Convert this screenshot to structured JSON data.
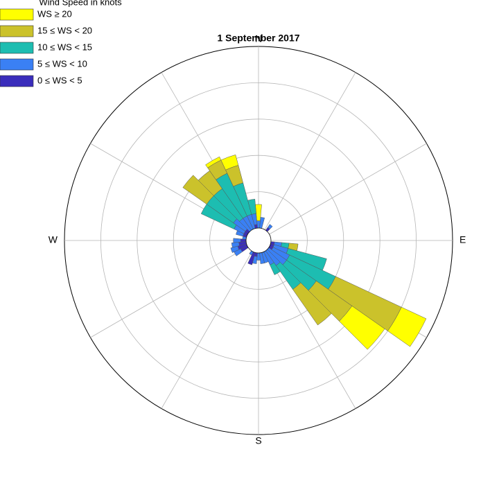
{
  "chart_data": {
    "type": "windrose",
    "title": "1 September 2017",
    "legend_title": "Wind Speed in knots",
    "legend": "upper left",
    "grid": true,
    "x": [
      0,
      10,
      20,
      30,
      40,
      50,
      60,
      70,
      80,
      90,
      100,
      110,
      120,
      130,
      140,
      150,
      160,
      170,
      180,
      190,
      200,
      210,
      220,
      230,
      240,
      250,
      260,
      270,
      280,
      290,
      300,
      310,
      320,
      330,
      340,
      350
    ],
    "thetaticks": [
      0,
      30,
      60,
      90,
      120,
      150,
      180,
      210,
      240,
      270,
      300,
      330
    ],
    "directions": [
      {
        "value": 0,
        "label": "N"
      },
      {
        "value": 90,
        "label": "E"
      },
      {
        "value": 180,
        "label": "S"
      },
      {
        "value": 270,
        "label": "W"
      }
    ],
    "rlim": [
      0,
      5
    ],
    "rticks": [
      1,
      2,
      3,
      4,
      5
    ],
    "series": [
      {
        "name": "WS ≥ 20",
        "color": "#ffff00",
        "values": [
          0.45,
          0,
          0,
          0,
          0,
          0,
          0,
          0,
          0,
          0,
          0,
          0,
          0.75,
          1.1,
          0,
          0,
          0,
          0,
          0,
          0,
          0,
          0,
          0,
          0,
          0,
          0,
          0,
          0,
          0,
          0,
          0,
          0,
          0,
          0.1,
          0.3,
          0
        ]
      },
      {
        "name": "15 ≤ WS < 20",
        "color": "#cbc22b",
        "values": [
          0,
          0,
          0,
          0,
          0,
          0,
          0,
          0,
          0,
          0,
          0.25,
          0,
          2.0,
          1.2,
          1.2,
          0,
          0,
          0,
          0,
          0,
          0,
          0,
          0,
          0,
          0,
          0,
          0,
          0,
          0,
          0,
          0,
          0.8,
          0.6,
          0.4,
          0.5,
          0
        ]
      },
      {
        "name": "10 ≤ WS < 15",
        "color": "#1dbdb1",
        "values": [
          0,
          0,
          0,
          0,
          0,
          0,
          0,
          0,
          0,
          0,
          0.2,
          1.1,
          1.4,
          1.0,
          0.8,
          0.3,
          0,
          0,
          0,
          0,
          0,
          0,
          0,
          0,
          0,
          0,
          0,
          0,
          0,
          0,
          1.0,
          0.9,
          1.0,
          1.3,
          0.9,
          0.4
        ]
      },
      {
        "name": "5 ≤ WS < 10",
        "color": "#3a80f4",
        "values": [
          0.2,
          0.3,
          0,
          0,
          0.1,
          0,
          0,
          0,
          0,
          0,
          0.2,
          0.4,
          0.5,
          0.6,
          0.5,
          0.4,
          0.3,
          0.3,
          0.2,
          0.2,
          0,
          0.1,
          0,
          0,
          0.2,
          0.2,
          0.2,
          0.2,
          0.1,
          0.2,
          0.3,
          0.4,
          0.4,
          0.4,
          0.4,
          0.3
        ]
      },
      {
        "name": "0 ≤ WS < 5",
        "color": "#3a2dbb",
        "values": [
          0,
          0,
          0,
          0,
          0.1,
          0,
          0,
          0,
          0,
          0,
          0.1,
          0.1,
          0.1,
          0,
          0,
          0,
          0,
          0,
          0,
          0.1,
          0.35,
          0,
          0,
          0,
          0.2,
          0.25,
          0.2,
          0.15,
          0,
          0.1,
          0.1,
          0.1,
          0,
          0,
          0,
          0.1
        ]
      }
    ]
  }
}
